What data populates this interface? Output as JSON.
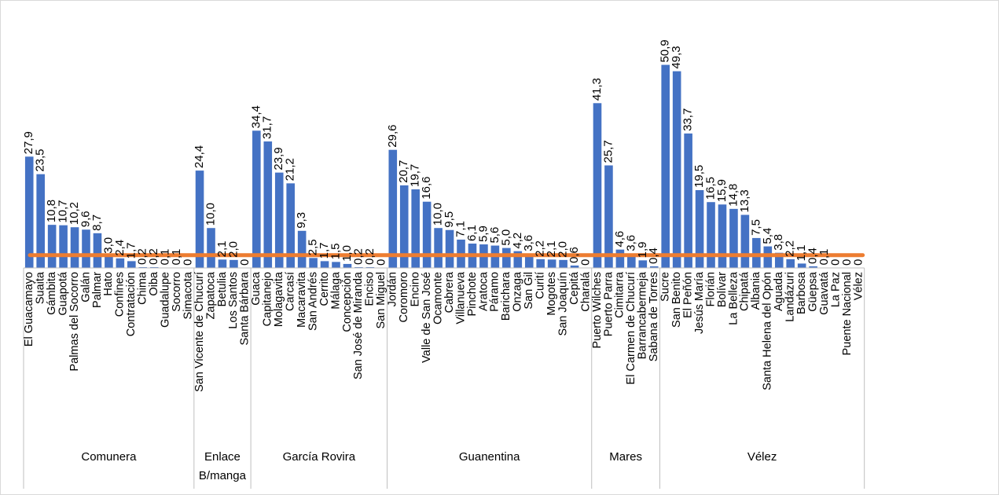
{
  "chart_data": {
    "type": "bar",
    "ylim": [
      0,
      60
    ],
    "colors": {
      "bar": "#4472C4",
      "reference_line": "#ED7D31",
      "axis": "#bfbfbf"
    },
    "reference_line": {
      "value": 3.2
    },
    "groups": [
      {
        "name": "Comunera",
        "items": [
          {
            "label": "El Guacamayo",
            "value": 27.9,
            "value_label": "27,9"
          },
          {
            "label": "Suaita",
            "value": 23.5,
            "value_label": "23,5"
          },
          {
            "label": "Gámbita",
            "value": 10.8,
            "value_label": "10,8"
          },
          {
            "label": "Guapotá",
            "value": 10.7,
            "value_label": "10,7"
          },
          {
            "label": "Palmas del Socorro",
            "value": 10.2,
            "value_label": "10,2"
          },
          {
            "label": "Galán",
            "value": 9.6,
            "value_label": "9,6"
          },
          {
            "label": "Palmar",
            "value": 8.7,
            "value_label": "8,7"
          },
          {
            "label": "Hato",
            "value": 3.0,
            "value_label": "3,0"
          },
          {
            "label": "Confines",
            "value": 2.4,
            "value_label": "2,4"
          },
          {
            "label": "Contratación",
            "value": 1.7,
            "value_label": "1,7"
          },
          {
            "label": "Chima",
            "value": 0.2,
            "value_label": "0,2"
          },
          {
            "label": "Oiba",
            "value": 0.2,
            "value_label": "0,2"
          },
          {
            "label": "Guadalupe",
            "value": 0.1,
            "value_label": "0,1"
          },
          {
            "label": "Socorro",
            "value": 0.1,
            "value_label": "0,1"
          },
          {
            "label": "Simacota",
            "value": 0,
            "value_label": "0"
          }
        ]
      },
      {
        "name": "Enlace B/manga",
        "items": [
          {
            "label": "San Vicente de Chucurí",
            "value": 24.4,
            "value_label": "24,4"
          },
          {
            "label": "Zapatoca",
            "value": 10.0,
            "value_label": "10,0"
          },
          {
            "label": "Betulia",
            "value": 2.1,
            "value_label": "2,1"
          },
          {
            "label": "Los Santos",
            "value": 2.0,
            "value_label": "2,0"
          },
          {
            "label": "Santa Bárbara",
            "value": 0,
            "value_label": "0"
          }
        ]
      },
      {
        "name": "García Rovira",
        "items": [
          {
            "label": "Guaca",
            "value": 34.4,
            "value_label": "34,4"
          },
          {
            "label": "Capitanejo",
            "value": 31.7,
            "value_label": "31,7"
          },
          {
            "label": "Molagavita",
            "value": 23.9,
            "value_label": "23,9"
          },
          {
            "label": "Carcasí",
            "value": 21.2,
            "value_label": "21,2"
          },
          {
            "label": "Macaravita",
            "value": 9.3,
            "value_label": "9,3"
          },
          {
            "label": "San Andrés",
            "value": 2.5,
            "value_label": "2,5"
          },
          {
            "label": "Cerrito",
            "value": 1.7,
            "value_label": "1,7"
          },
          {
            "label": "Málaga",
            "value": 1.5,
            "value_label": "1,5"
          },
          {
            "label": "Concepción",
            "value": 1.0,
            "value_label": "1,0"
          },
          {
            "label": "San José de Miranda",
            "value": 0.2,
            "value_label": "0,2"
          },
          {
            "label": "Enciso",
            "value": 0.2,
            "value_label": "0,2"
          },
          {
            "label": "San Miguel",
            "value": 0,
            "value_label": "0"
          }
        ]
      },
      {
        "name": "Guanentina",
        "items": [
          {
            "label": "Jordán",
            "value": 29.6,
            "value_label": "29,6"
          },
          {
            "label": "Coromoro",
            "value": 20.7,
            "value_label": "20,7"
          },
          {
            "label": "Encino",
            "value": 19.7,
            "value_label": "19,7"
          },
          {
            "label": "Valle de San José",
            "value": 16.6,
            "value_label": "16,6"
          },
          {
            "label": "Ocamonte",
            "value": 10.0,
            "value_label": "10,0"
          },
          {
            "label": "Cabrera",
            "value": 9.5,
            "value_label": "9,5"
          },
          {
            "label": "Villanueva",
            "value": 7.1,
            "value_label": "7,1"
          },
          {
            "label": "Pinchote",
            "value": 6.1,
            "value_label": "6,1"
          },
          {
            "label": "Aratoca",
            "value": 5.9,
            "value_label": "5,9"
          },
          {
            "label": "Páramo",
            "value": 5.6,
            "value_label": "5,6"
          },
          {
            "label": "Barichara",
            "value": 5.0,
            "value_label": "5,0"
          },
          {
            "label": "Onzaga",
            "value": 4.2,
            "value_label": "4,2"
          },
          {
            "label": "San Gil",
            "value": 3.6,
            "value_label": "3,6"
          },
          {
            "label": "Curití",
            "value": 2.2,
            "value_label": "2,2"
          },
          {
            "label": "Mogotes",
            "value": 2.1,
            "value_label": "2,1"
          },
          {
            "label": "San Joaquín",
            "value": 2.0,
            "value_label": "2,0"
          },
          {
            "label": "Cepitá",
            "value": 0.6,
            "value_label": "0,6"
          },
          {
            "label": "Charalá",
            "value": 0,
            "value_label": "0"
          }
        ]
      },
      {
        "name": "Mares",
        "items": [
          {
            "label": "Puerto Wilches",
            "value": 41.3,
            "value_label": "41,3"
          },
          {
            "label": "Puerto Parra",
            "value": 25.7,
            "value_label": "25,7"
          },
          {
            "label": "Cimitarra",
            "value": 4.6,
            "value_label": "4,6"
          },
          {
            "label": "El Carmen de Chucurí",
            "value": 3.6,
            "value_label": "3,6"
          },
          {
            "label": "Barrancabermeja",
            "value": 1.9,
            "value_label": "1,9"
          },
          {
            "label": "Sabana de Torres",
            "value": 0.4,
            "value_label": "0,4"
          }
        ]
      },
      {
        "name": "Vélez",
        "items": [
          {
            "label": "Sucre",
            "value": 50.9,
            "value_label": "50,9"
          },
          {
            "label": "San Benito",
            "value": 49.3,
            "value_label": "49,3"
          },
          {
            "label": "El Peñón",
            "value": 33.7,
            "value_label": "33,7"
          },
          {
            "label": "Jesús María",
            "value": 19.5,
            "value_label": "19,5"
          },
          {
            "label": "Florián",
            "value": 16.5,
            "value_label": "16,5"
          },
          {
            "label": "Bolívar",
            "value": 15.9,
            "value_label": "15,9"
          },
          {
            "label": "La Belleza",
            "value": 14.8,
            "value_label": "14,8"
          },
          {
            "label": "Chipatá",
            "value": 13.3,
            "value_label": "13,3"
          },
          {
            "label": "Albania",
            "value": 7.5,
            "value_label": "7,5"
          },
          {
            "label": "Santa Helena del Opón",
            "value": 5.4,
            "value_label": "5,4"
          },
          {
            "label": "Aguada",
            "value": 3.8,
            "value_label": "3,8"
          },
          {
            "label": "Landázuri",
            "value": 2.2,
            "value_label": "2,2"
          },
          {
            "label": "Barbosa",
            "value": 1.1,
            "value_label": "1,1"
          },
          {
            "label": "Güepsa",
            "value": 0.4,
            "value_label": "0,4"
          },
          {
            "label": "Guavatá",
            "value": 0.1,
            "value_label": "0,1"
          },
          {
            "label": "La Paz",
            "value": 0,
            "value_label": "0"
          },
          {
            "label": "Puente Nacional",
            "value": 0,
            "value_label": "0"
          },
          {
            "label": "Vélez",
            "value": 0,
            "value_label": "0"
          }
        ]
      }
    ]
  }
}
